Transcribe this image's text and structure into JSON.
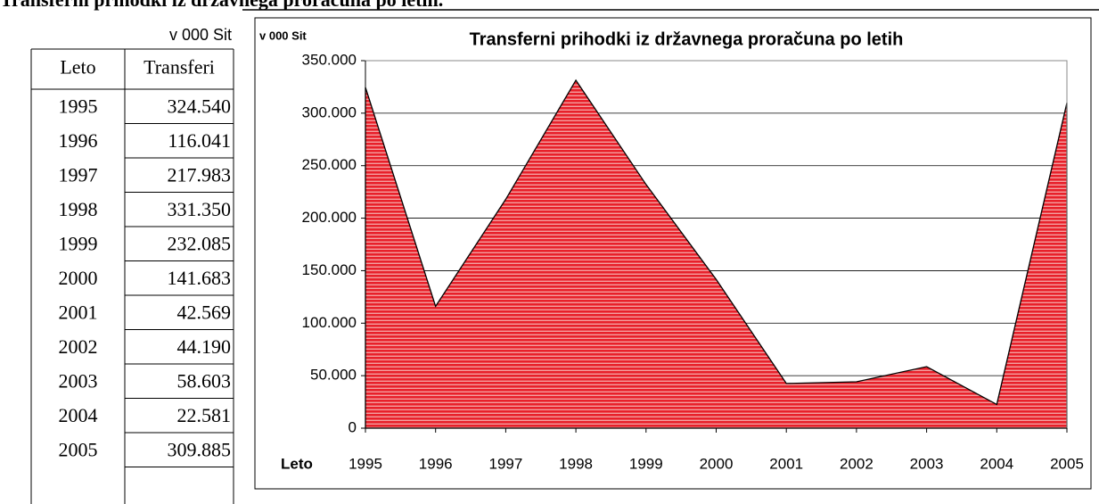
{
  "header": {
    "title": "Transferni prihodki iz državnega proračuna po letih."
  },
  "table": {
    "unit": "v 000 Sit",
    "columns": [
      "Leto",
      "Transferi"
    ],
    "rows": [
      [
        "1995",
        "324.540"
      ],
      [
        "1996",
        "116.041"
      ],
      [
        "1997",
        "217.983"
      ],
      [
        "1998",
        "331.350"
      ],
      [
        "1999",
        "232.085"
      ],
      [
        "2000",
        "141.683"
      ],
      [
        "2001",
        "42.569"
      ],
      [
        "2002",
        "44.190"
      ],
      [
        "2003",
        "58.603"
      ],
      [
        "2004",
        "22.581"
      ],
      [
        "2005",
        "309.885"
      ]
    ]
  },
  "chart_data": {
    "type": "area",
    "title": "Transferni prihodki iz državnega proračuna po letih",
    "y_label": "v 000 Sit",
    "x_label": "Leto",
    "categories": [
      "1995",
      "1996",
      "1997",
      "1998",
      "1999",
      "2000",
      "2001",
      "2002",
      "2003",
      "2004",
      "2005"
    ],
    "values": [
      324540,
      116041,
      217983,
      331350,
      232085,
      141683,
      42569,
      44190,
      58603,
      22581,
      309885
    ],
    "color": "#e8202a",
    "ylim": [
      0,
      350000
    ],
    "yticks": [
      0,
      {
        "value": 50000,
        "label": "50.000"
      },
      {
        "value": 100000,
        "label": "100.000"
      },
      {
        "value": 150000,
        "label": "150.000"
      },
      {
        "value": 200000,
        "label": "200.000"
      },
      {
        "value": 250000,
        "label": "250.000"
      },
      {
        "value": 300000,
        "label": "300.000"
      },
      {
        "value": 350000,
        "label": "350.000"
      }
    ],
    "grid": true
  }
}
